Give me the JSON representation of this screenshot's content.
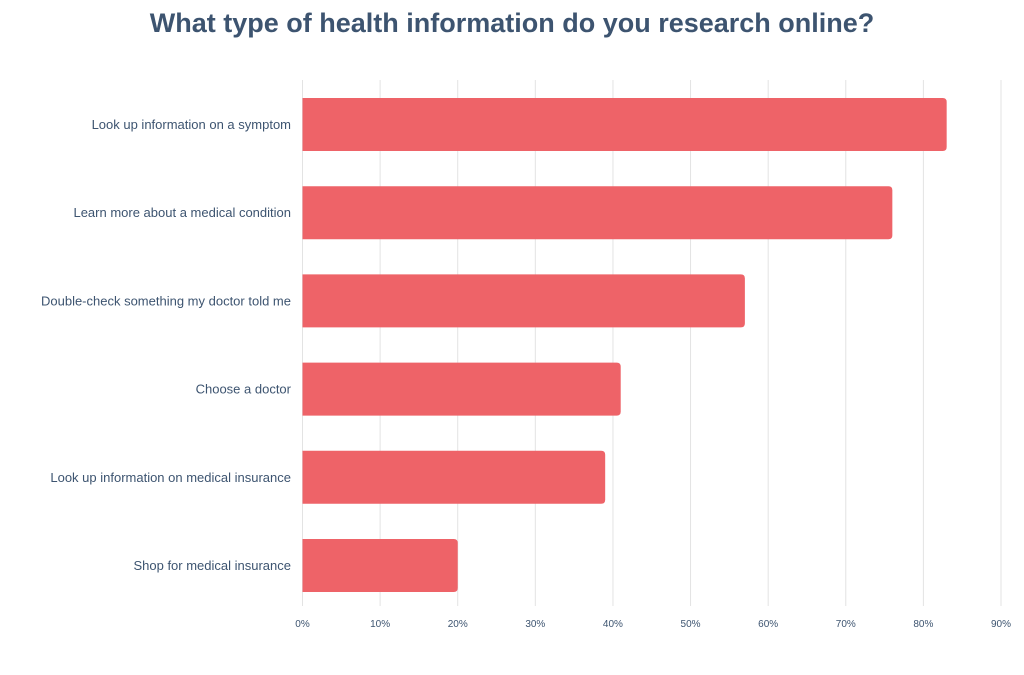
{
  "chart_data": {
    "type": "bar",
    "orientation": "horizontal",
    "title": "What type of health information do you research online?",
    "categories": [
      "Look up information on a symptom",
      "Learn more about a medical condition",
      "Double-check something my doctor told me",
      "Choose a doctor",
      "Look up information on medical insurance",
      "Shop for medical insurance"
    ],
    "values": [
      83,
      76,
      57,
      41,
      39,
      20
    ],
    "xlim": [
      0,
      90
    ],
    "xticks": [
      "0%",
      "10%",
      "20%",
      "30%",
      "40%",
      "50%",
      "60%",
      "70%",
      "80%",
      "90%"
    ],
    "grid": "vertical",
    "bar_color": "#ee6368",
    "grid_color": "#e3e3e3",
    "text_color": "#3d5470"
  }
}
